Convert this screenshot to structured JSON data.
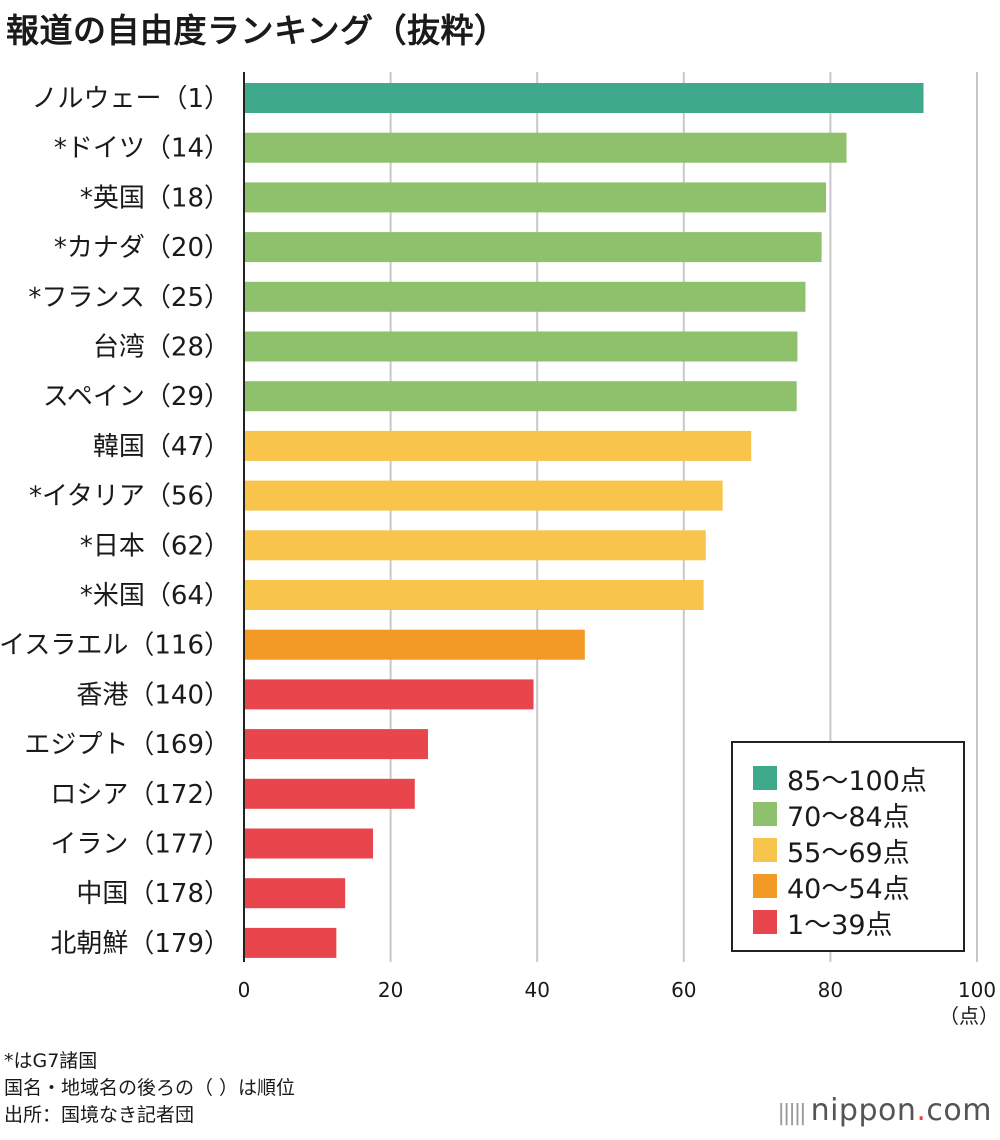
{
  "title": "報道の自由度ランキング（抜粋）",
  "chart_data": {
    "type": "bar",
    "orientation": "horizontal",
    "categories": [
      "ノルウェー（1）",
      "*ドイツ（14）",
      "*英国（18）",
      "*カナダ（20）",
      "*フランス（25）",
      "台湾（28）",
      "スペイン（29）",
      "韓国（47）",
      "*イタリア（56）",
      "*日本（62）",
      "*米国（64）",
      "イスラエル（116）",
      "香港（140）",
      "エジプト（169）",
      "ロシア（172）",
      "イラン（177）",
      "中国（178）",
      "北朝鮮（179）"
    ],
    "values": [
      92.7,
      82.2,
      79.4,
      78.8,
      76.6,
      75.5,
      75.4,
      69.2,
      65.3,
      63.0,
      62.7,
      46.5,
      39.5,
      25.1,
      23.3,
      17.6,
      13.8,
      12.6
    ],
    "bands": [
      "85-100",
      "70-84",
      "70-84",
      "70-84",
      "70-84",
      "70-84",
      "70-84",
      "55-69",
      "55-69",
      "55-69",
      "55-69",
      "40-54",
      "1-39",
      "1-39",
      "1-39",
      "1-39",
      "1-39",
      "1-39"
    ],
    "xlim": [
      0,
      100
    ],
    "xticks": [
      "0",
      "20",
      "40",
      "60",
      "80",
      "100"
    ],
    "xunit": "（点）",
    "grid": true,
    "legend_position": "bottom-right",
    "legend": [
      {
        "band": "85-100",
        "label": "85〜100点",
        "color": "#3fa98b"
      },
      {
        "band": "70-84",
        "label": "70〜84点",
        "color": "#8fc06b"
      },
      {
        "band": "55-69",
        "label": "55〜69点",
        "color": "#f8c44c"
      },
      {
        "band": "40-54",
        "label": "40〜54点",
        "color": "#f39a26"
      },
      {
        "band": "1-39",
        "label": "1〜39点",
        "color": "#e8454c"
      }
    ]
  },
  "notes": [
    "*はG7諸国",
    "国名・地域名の後ろの（ ）は順位",
    "出所：国境なき記者団"
  ],
  "brand": {
    "name": "nippon",
    "dot": ".",
    "suffix": "com"
  }
}
